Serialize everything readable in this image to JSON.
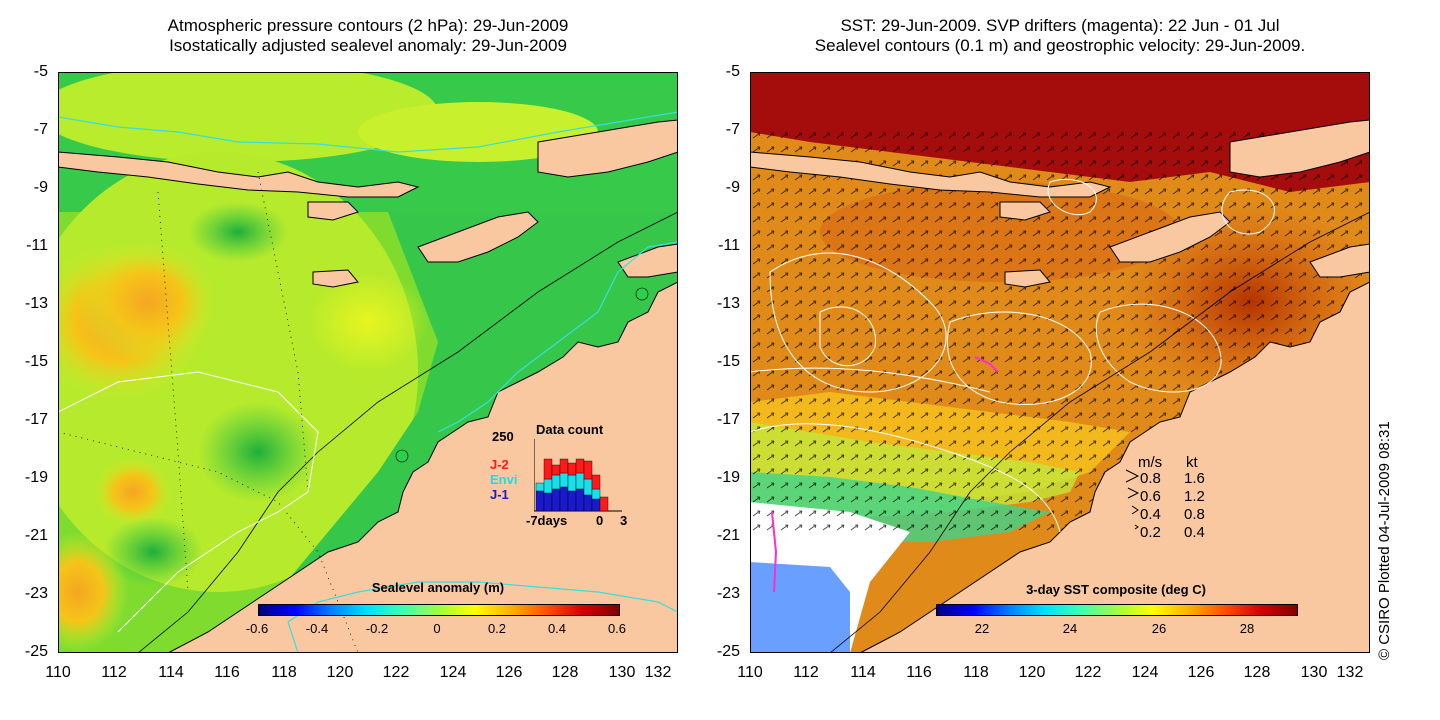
{
  "left": {
    "title_line1": "Atmospheric pressure contours (2 hPa): 29-Jun-2009",
    "title_line2": "Isostatically adjusted sealevel anomaly: 29-Jun-2009",
    "colorbar_label": "Sealevel anomaly (m)",
    "colorbar_ticks": [
      "-0.6",
      "-0.4",
      "-0.2",
      "0",
      "0.2",
      "0.4",
      "0.6"
    ],
    "data_count": {
      "title": "Data count",
      "ymax": "250",
      "legend": [
        {
          "label": "J-2",
          "color": "#ff1a1a"
        },
        {
          "label": "Envi",
          "color": "#19e0e8"
        },
        {
          "label": "J-1",
          "color": "#1a1acc"
        }
      ],
      "xlabels": [
        "-7days",
        "0",
        "3"
      ]
    }
  },
  "right": {
    "title_line1": "SST: 29-Jun-2009. SVP drifters (magenta): 22 Jun - 01 Jul",
    "title_line2": "Sealevel contours (0.1 m) and geostrophic velocity: 29-Jun-2009.",
    "colorbar_label": "3-day SST composite (deg C)",
    "colorbar_ticks": [
      "22",
      "24",
      "26",
      "28"
    ],
    "velocity_legend": {
      "header_ms": "m/s",
      "header_kt": "kt",
      "rows": [
        {
          "ms": "0.8",
          "kt": "1.6"
        },
        {
          "ms": "0.6",
          "kt": "1.2"
        },
        {
          "ms": "0.4",
          "kt": "0.8"
        },
        {
          "ms": "0.2",
          "kt": "0.4"
        }
      ]
    }
  },
  "y_ticks": [
    "-5",
    "-7",
    "-9",
    "-11",
    "-13",
    "-15",
    "-17",
    "-19",
    "-21",
    "-23",
    "-25"
  ],
  "x_ticks": [
    "110",
    "112",
    "114",
    "116",
    "118",
    "120",
    "122",
    "124",
    "126",
    "128",
    "130",
    "132"
  ],
  "copyright": "© CSIRO Plotted 04-Jul-2009 08:31",
  "colors": {
    "land": "#f9c8a0",
    "coast": "#000000",
    "contour_cyan": "#33e0e0"
  }
}
